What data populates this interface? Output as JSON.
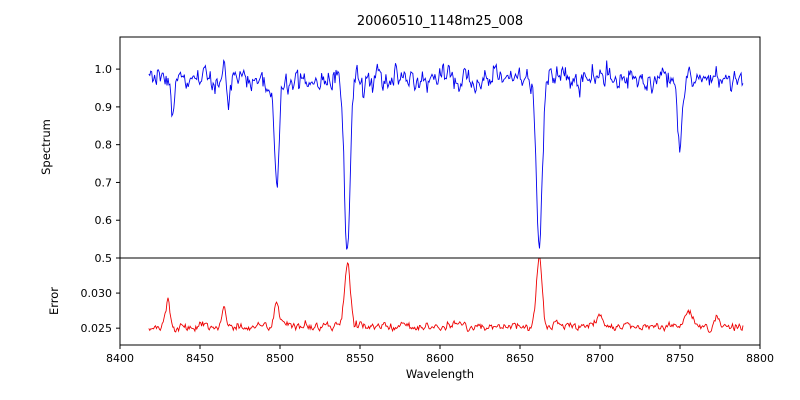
{
  "chart_data": [
    {
      "type": "line",
      "title": "20060510_1148m25_008",
      "xlabel": "Wavelength",
      "ylabel": "Spectrum",
      "xlim": [
        8400,
        8800
      ],
      "ylim": [
        0.5,
        1.085
      ],
      "x_ticks": [
        8400,
        8450,
        8500,
        8550,
        8600,
        8650,
        8700,
        8750,
        8800
      ],
      "x_tick_labels": [
        "8400",
        "8450",
        "8500",
        "8550",
        "8600",
        "8650",
        "8700",
        "8750",
        "8800"
      ],
      "y_ticks": [
        0.5,
        0.6,
        0.7,
        0.8,
        0.9,
        1.0
      ],
      "y_tick_labels": [
        "0.5",
        "0.6",
        "0.7",
        "0.8",
        "0.9",
        "1.0"
      ],
      "color": "#0000ee",
      "x_range_data": [
        8418,
        8790
      ],
      "sample_step": 0.6,
      "continuum": 0.975,
      "noise_sigma": 0.017,
      "absorption_lines": [
        {
          "center": 8433.0,
          "depth": 0.1,
          "width": 1.0
        },
        {
          "center": 8468.0,
          "depth": 0.075,
          "width": 1.0
        },
        {
          "center": 8498.0,
          "depth": 0.3,
          "width": 1.4
        },
        {
          "center": 8542.1,
          "depth": 0.46,
          "width": 1.8
        },
        {
          "center": 8662.1,
          "depth": 0.46,
          "width": 1.8
        },
        {
          "center": 8750.0,
          "depth": 0.19,
          "width": 1.6
        }
      ],
      "grid": false,
      "legend": "none"
    },
    {
      "type": "line",
      "ylabel": "Error",
      "xlim": [
        8400,
        8800
      ],
      "ylim": [
        0.0226,
        0.035
      ],
      "y_ticks": [
        0.025,
        0.03
      ],
      "y_tick_labels": [
        "0.025",
        "0.030"
      ],
      "color": "#ee0000",
      "x_range_data": [
        8418,
        8790
      ],
      "sample_step": 0.6,
      "baseline": 0.0252,
      "noise_sigma": 0.00035,
      "peaks": [
        {
          "center": 8430.0,
          "height": 0.0037,
          "width": 1.2
        },
        {
          "center": 8465.0,
          "height": 0.0028,
          "width": 1.2
        },
        {
          "center": 8498.0,
          "height": 0.0036,
          "width": 1.4
        },
        {
          "center": 8542.1,
          "height": 0.0093,
          "width": 1.8
        },
        {
          "center": 8662.1,
          "height": 0.0098,
          "width": 1.8
        },
        {
          "center": 8700.0,
          "height": 0.0012,
          "width": 2.0
        },
        {
          "center": 8755.0,
          "height": 0.0018,
          "width": 2.5
        },
        {
          "center": 8773.0,
          "height": 0.0018,
          "width": 1.5
        }
      ],
      "grid": false,
      "legend": "none"
    }
  ]
}
